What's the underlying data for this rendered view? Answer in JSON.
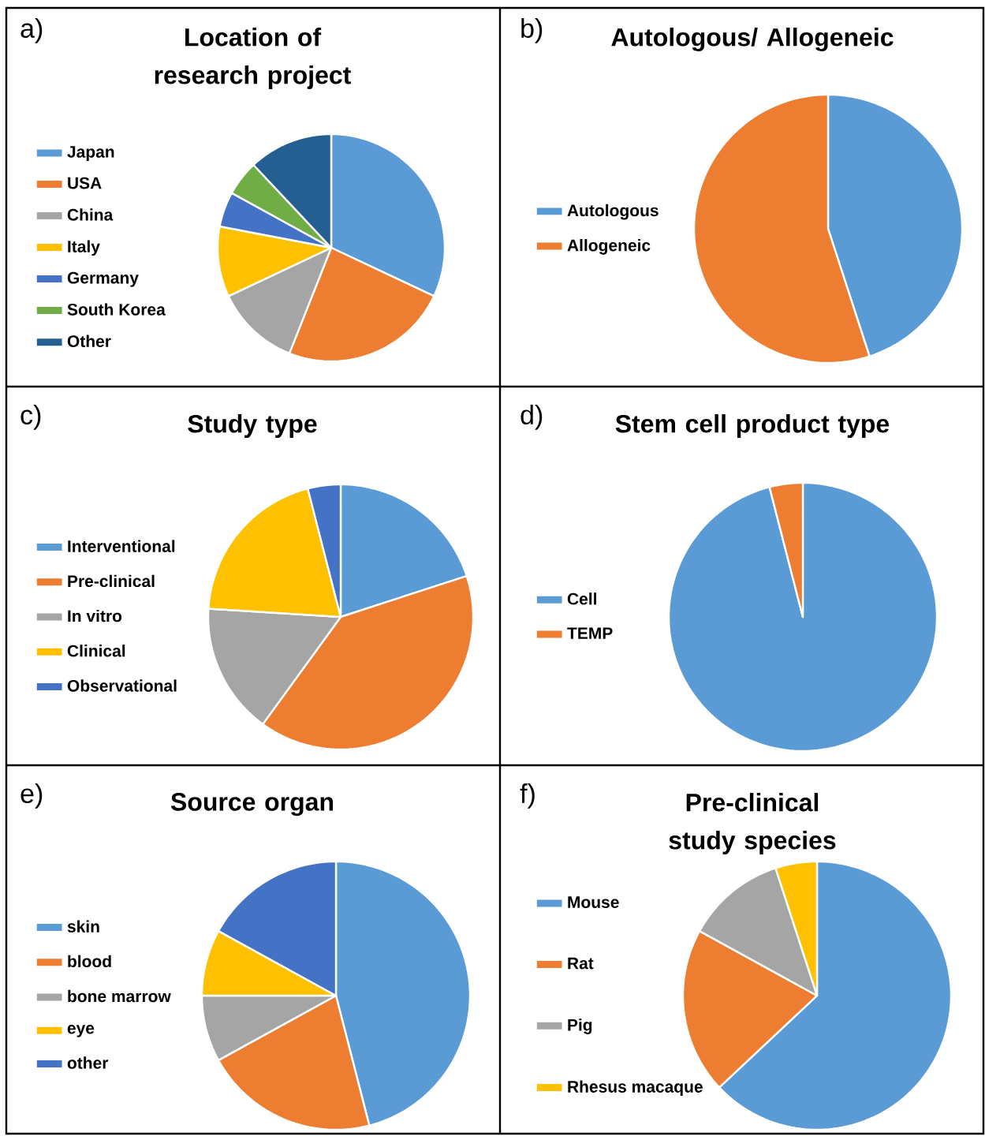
{
  "chart_data": [
    {
      "type": "pie",
      "title": "Location of research project",
      "categories": [
        "Japan",
        "USA",
        "China",
        "Italy",
        "Germany",
        "South Korea",
        "Other"
      ],
      "values": [
        32,
        24,
        12,
        10,
        5,
        5,
        12
      ],
      "colors": [
        "#5b9bd5",
        "#ed7d31",
        "#a5a5a5",
        "#ffc000",
        "#4472c4",
        "#70ad47",
        "#255e91"
      ],
      "legend": "left",
      "annotations": [
        "a)"
      ]
    },
    {
      "type": "pie",
      "title": "Autologous/ Allogeneic",
      "categories": [
        "Autologous",
        "Allogeneic"
      ],
      "values": [
        45,
        55
      ],
      "colors": [
        "#5b9bd5",
        "#ed7d31"
      ],
      "legend": "left",
      "annotations": [
        "b)"
      ]
    },
    {
      "type": "pie",
      "title": "Study type",
      "categories": [
        "Interventional",
        "Pre-clinical",
        "In vitro",
        "Clinical",
        "Observational"
      ],
      "values": [
        20,
        40,
        16,
        20,
        4
      ],
      "colors": [
        "#5b9bd5",
        "#ed7d31",
        "#a5a5a5",
        "#ffc000",
        "#4472c4"
      ],
      "legend": "left",
      "annotations": [
        "c)"
      ]
    },
    {
      "type": "pie",
      "title": "Stem cell product type",
      "categories": [
        "Cell",
        "TEMP"
      ],
      "values": [
        96,
        4
      ],
      "colors": [
        "#5b9bd5",
        "#ed7d31"
      ],
      "legend": "left",
      "annotations": [
        "d)"
      ]
    },
    {
      "type": "pie",
      "title": "Source organ",
      "categories": [
        "skin",
        "blood",
        "bone marrow",
        "eye",
        "other"
      ],
      "values": [
        46,
        21,
        8,
        8,
        17
      ],
      "colors": [
        "#5b9bd5",
        "#ed7d31",
        "#a5a5a5",
        "#ffc000",
        "#4472c4"
      ],
      "legend": "left",
      "annotations": [
        "e)"
      ]
    },
    {
      "type": "pie",
      "title": "Pre-clinical study species",
      "categories": [
        "Mouse",
        "Rat",
        "Pig",
        "Rhesus macaque"
      ],
      "values": [
        63,
        20,
        12,
        5
      ],
      "colors": [
        "#5b9bd5",
        "#ed7d31",
        "#a5a5a5",
        "#ffc000"
      ],
      "legend": "left",
      "annotations": [
        "f)"
      ]
    }
  ]
}
